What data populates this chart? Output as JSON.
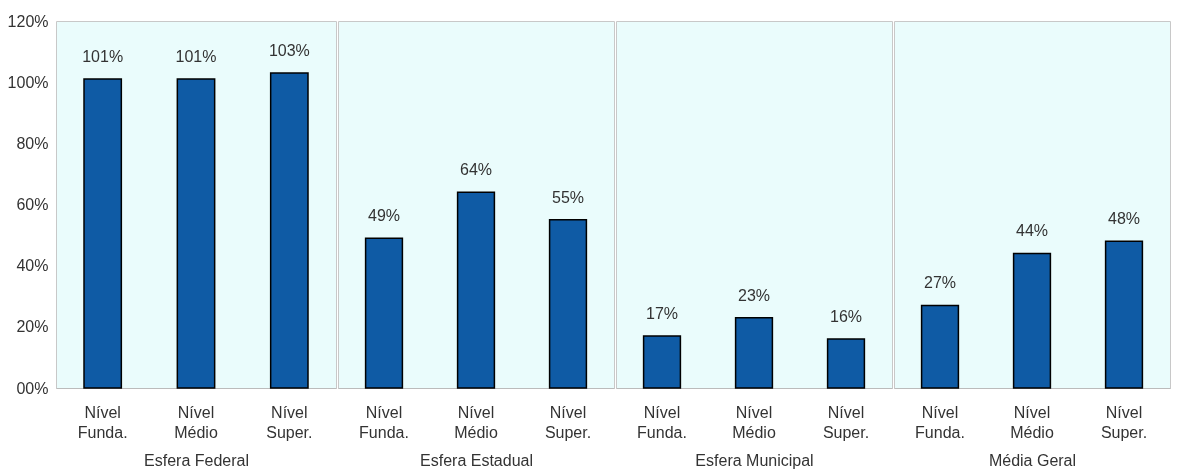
{
  "chart_data": [
    {
      "type": "bar",
      "xlabel": "Esfera Federal",
      "categories": [
        "Nível\nFunda.",
        "Nível\nMédio",
        "Nível\nSuper."
      ],
      "values": [
        101,
        101,
        103
      ],
      "value_labels": [
        "101%",
        "101%",
        "103%"
      ],
      "color": "#0f5ba5",
      "ylim": [
        0,
        120
      ],
      "yticks": [
        {
          "value": 0,
          "label": "00%"
        },
        {
          "value": 20,
          "label": "20%"
        },
        {
          "value": 40,
          "label": "40%"
        },
        {
          "value": 60,
          "label": "60%"
        },
        {
          "value": 80,
          "label": "80%"
        },
        {
          "value": 100,
          "label": "100%"
        },
        {
          "value": 120,
          "label": "120%"
        }
      ],
      "grid": false
    },
    {
      "type": "bar",
      "xlabel": "Esfera Estadual",
      "categories": [
        "Nível\nFunda.",
        "Nível\nMédio",
        "Nível\nSuper."
      ],
      "values": [
        49,
        64,
        55
      ],
      "value_labels": [
        "49%",
        "64%",
        "55%"
      ],
      "color": "#0f5ba5",
      "ylim": [
        0,
        120
      ],
      "tick_labels": "x",
      "grid": false
    },
    {
      "type": "bar",
      "xlabel": "Esfera Municipal",
      "categories": [
        "Nível\nFunda.",
        "Nível\nMédio",
        "Nível\nSuper."
      ],
      "values": [
        17,
        23,
        16
      ],
      "value_labels": [
        "17%",
        "23%",
        "16%"
      ],
      "color": "#0f5ba5",
      "ylim": [
        0,
        120
      ],
      "tick_labels": "x",
      "grid": false
    },
    {
      "type": "bar",
      "xlabel": "Média Geral",
      "categories": [
        "Nível\nFunda.",
        "Nível\nMédio",
        "Nível\nSuper."
      ],
      "values": [
        27,
        44,
        48
      ],
      "value_labels": [
        "27%",
        "44%",
        "48%"
      ],
      "color": "#0f5ba5",
      "ylim": [
        0,
        120
      ],
      "tick_labels": "x",
      "grid": false
    }
  ]
}
